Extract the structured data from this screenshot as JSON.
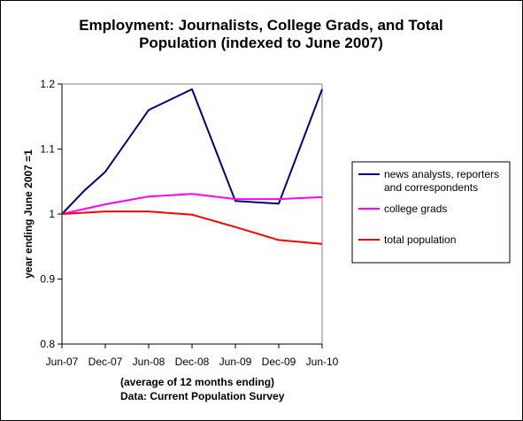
{
  "chart_data": {
    "type": "line",
    "title_lines": [
      "Employment: Journalists, College Grads, and Total",
      "Population (indexed to June 2007)"
    ],
    "xlabel_lines": [
      "(average of 12 months ending)",
      "Data: Current Population Survey"
    ],
    "ylabel": "year ending June 2007 =1",
    "categories": [
      "Jun-07",
      "Dec-07",
      "Jun-08",
      "Dec-08",
      "Jun-09",
      "Dec-09",
      "Jun-10"
    ],
    "ylim": [
      0.8,
      1.2
    ],
    "yticks": [
      "0.8",
      "0.9",
      "1",
      "1.1",
      "1.2"
    ],
    "grid": false,
    "legend_position": "right",
    "series": [
      {
        "name_lines": [
          "news analysts, reporters",
          "and correspondents"
        ],
        "color": "#000080",
        "points": [
          [
            0,
            1.0
          ],
          [
            0.5,
            1.035
          ],
          [
            1,
            1.065
          ],
          [
            2,
            1.16
          ],
          [
            3,
            1.192
          ],
          [
            4,
            1.02
          ],
          [
            5,
            1.016
          ],
          [
            6,
            1.192
          ]
        ]
      },
      {
        "name_lines": [
          "college grads"
        ],
        "color": "#ff00ff",
        "points": [
          [
            0,
            1.0
          ],
          [
            1,
            1.015
          ],
          [
            2,
            1.027
          ],
          [
            3,
            1.031
          ],
          [
            4,
            1.023
          ],
          [
            5,
            1.023
          ],
          [
            6,
            1.026
          ]
        ]
      },
      {
        "name_lines": [
          "total population"
        ],
        "color": "#ff0000",
        "points": [
          [
            0,
            1.0
          ],
          [
            1,
            1.004
          ],
          [
            2,
            1.004
          ],
          [
            3,
            0.999
          ],
          [
            4,
            0.98
          ],
          [
            5,
            0.96
          ],
          [
            6,
            0.954
          ]
        ]
      }
    ]
  }
}
